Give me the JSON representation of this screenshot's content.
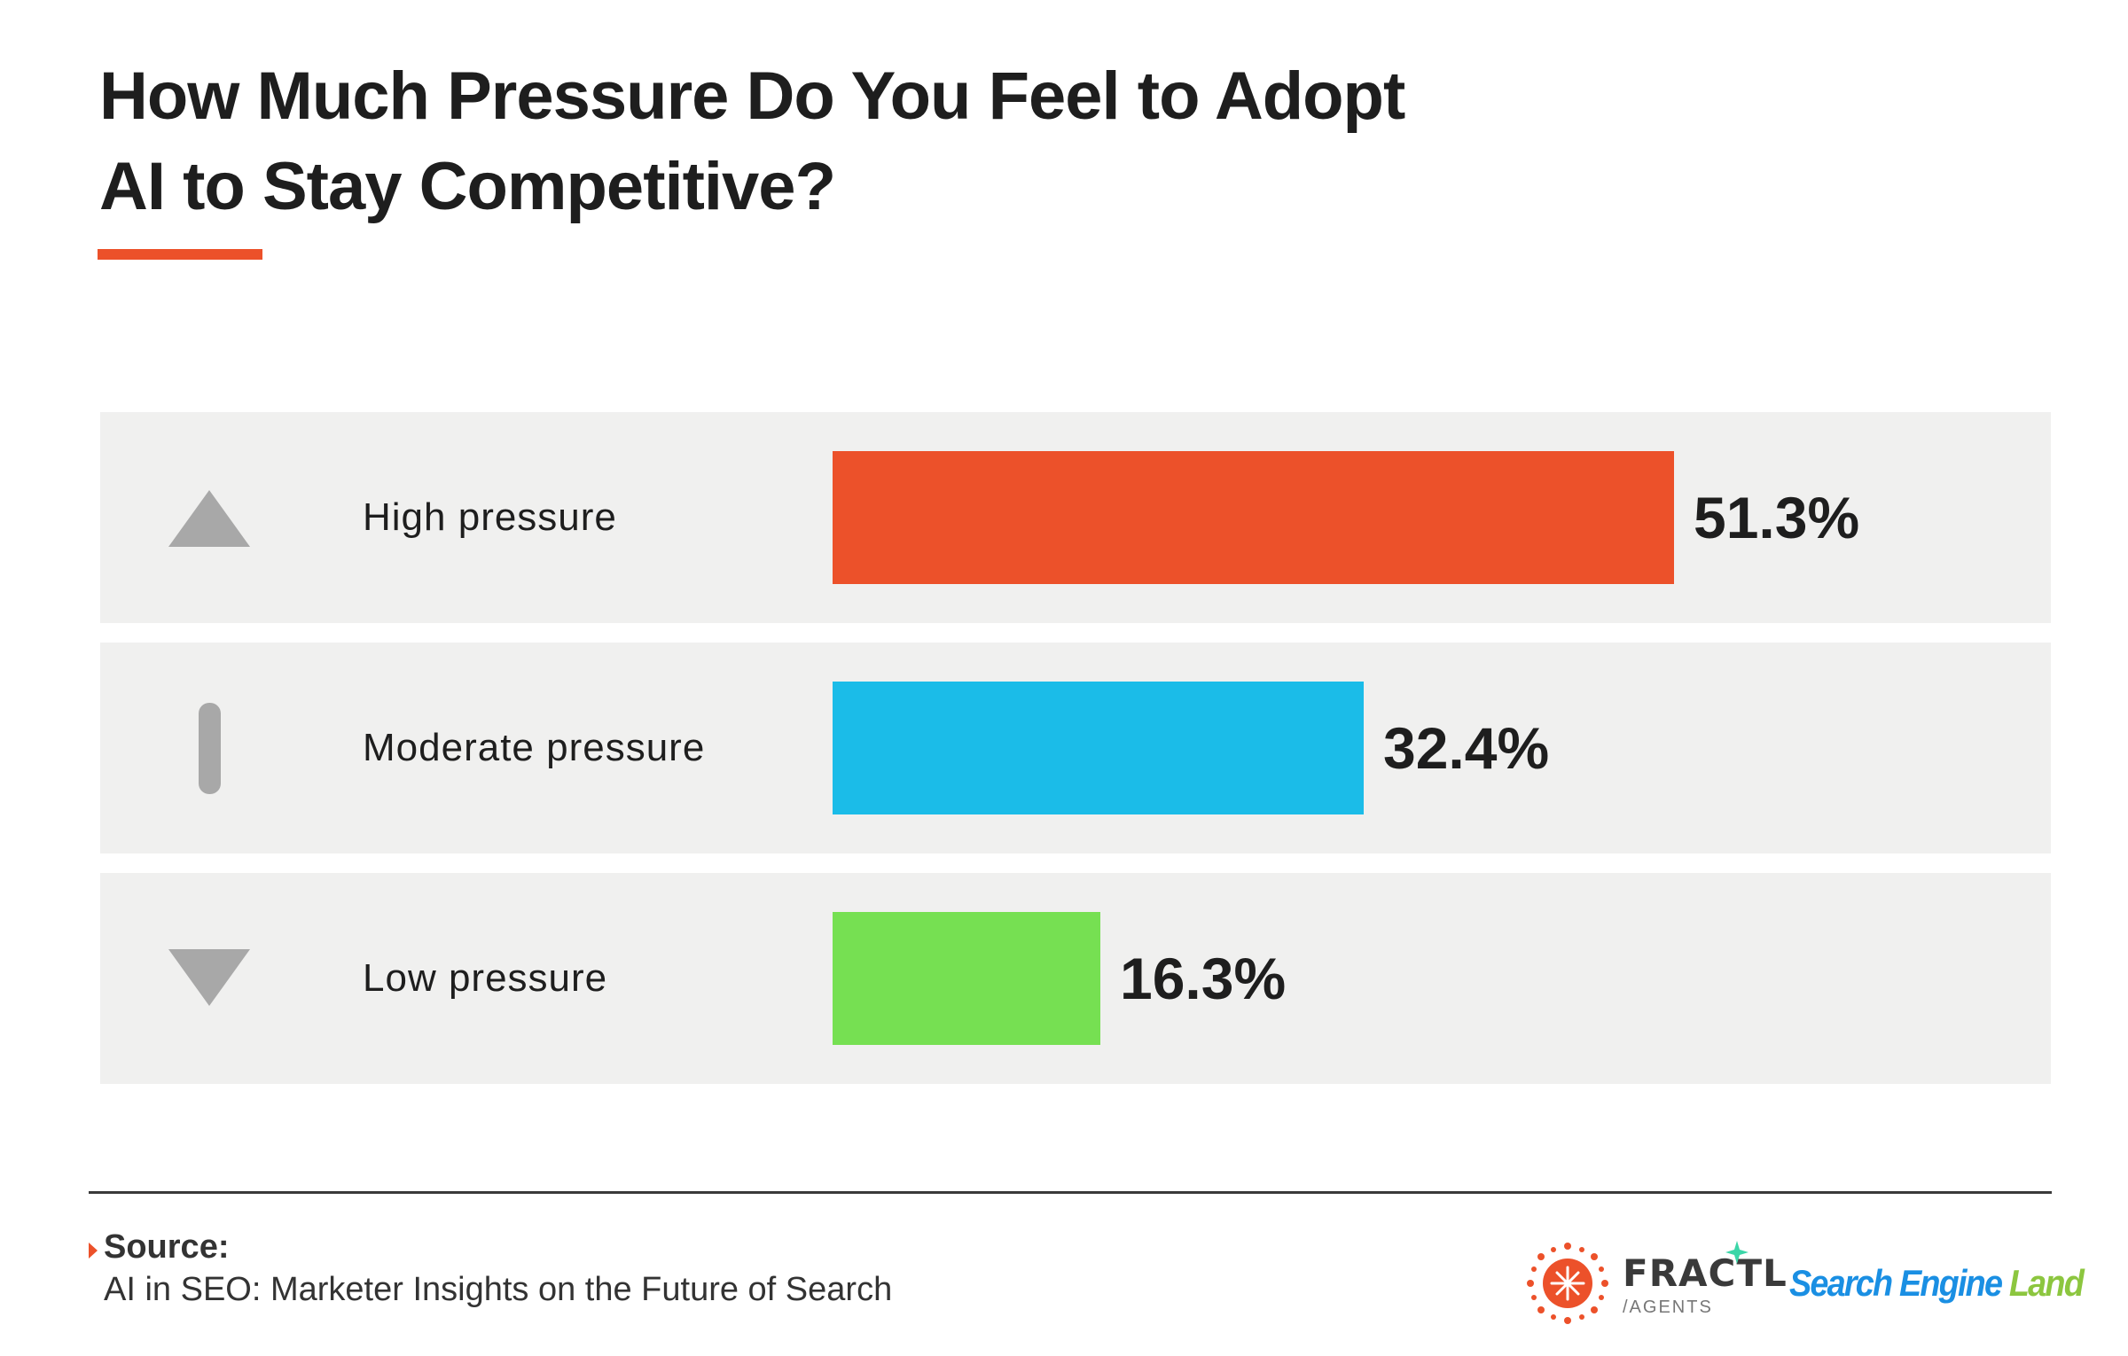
{
  "title_line1": "How Much Pressure Do You Feel to Adopt",
  "title_line2": "AI to Stay Competitive?",
  "chart_data": {
    "type": "bar",
    "orientation": "horizontal",
    "categories": [
      "High pressure",
      "Moderate pressure",
      "Low pressure"
    ],
    "values": [
      51.3,
      32.4,
      16.3
    ],
    "value_labels": [
      "51.3%",
      "32.4%",
      "16.3%"
    ],
    "unit": "%",
    "colors": [
      "#ec512a",
      "#1bbce8",
      "#76e052"
    ],
    "icons": [
      "triangle-up-icon",
      "vertical-bar-icon",
      "triangle-down-icon"
    ],
    "grid": false
  },
  "source": {
    "heading": "Source:",
    "text": "AI in SEO: Marketer Insights on the Future of Search"
  },
  "logos": {
    "fractl_name": "FRACTL",
    "fractl_sub": "/AGENTS",
    "sel_part1": "Search Engine",
    "sel_part2": "Land",
    "sel_color1": "#1a8fe3",
    "sel_color2": "#8cc63f"
  },
  "colors": {
    "accent": "#ec512a",
    "row_background": "#f0f0ef",
    "icon": "#a8a8a8"
  }
}
